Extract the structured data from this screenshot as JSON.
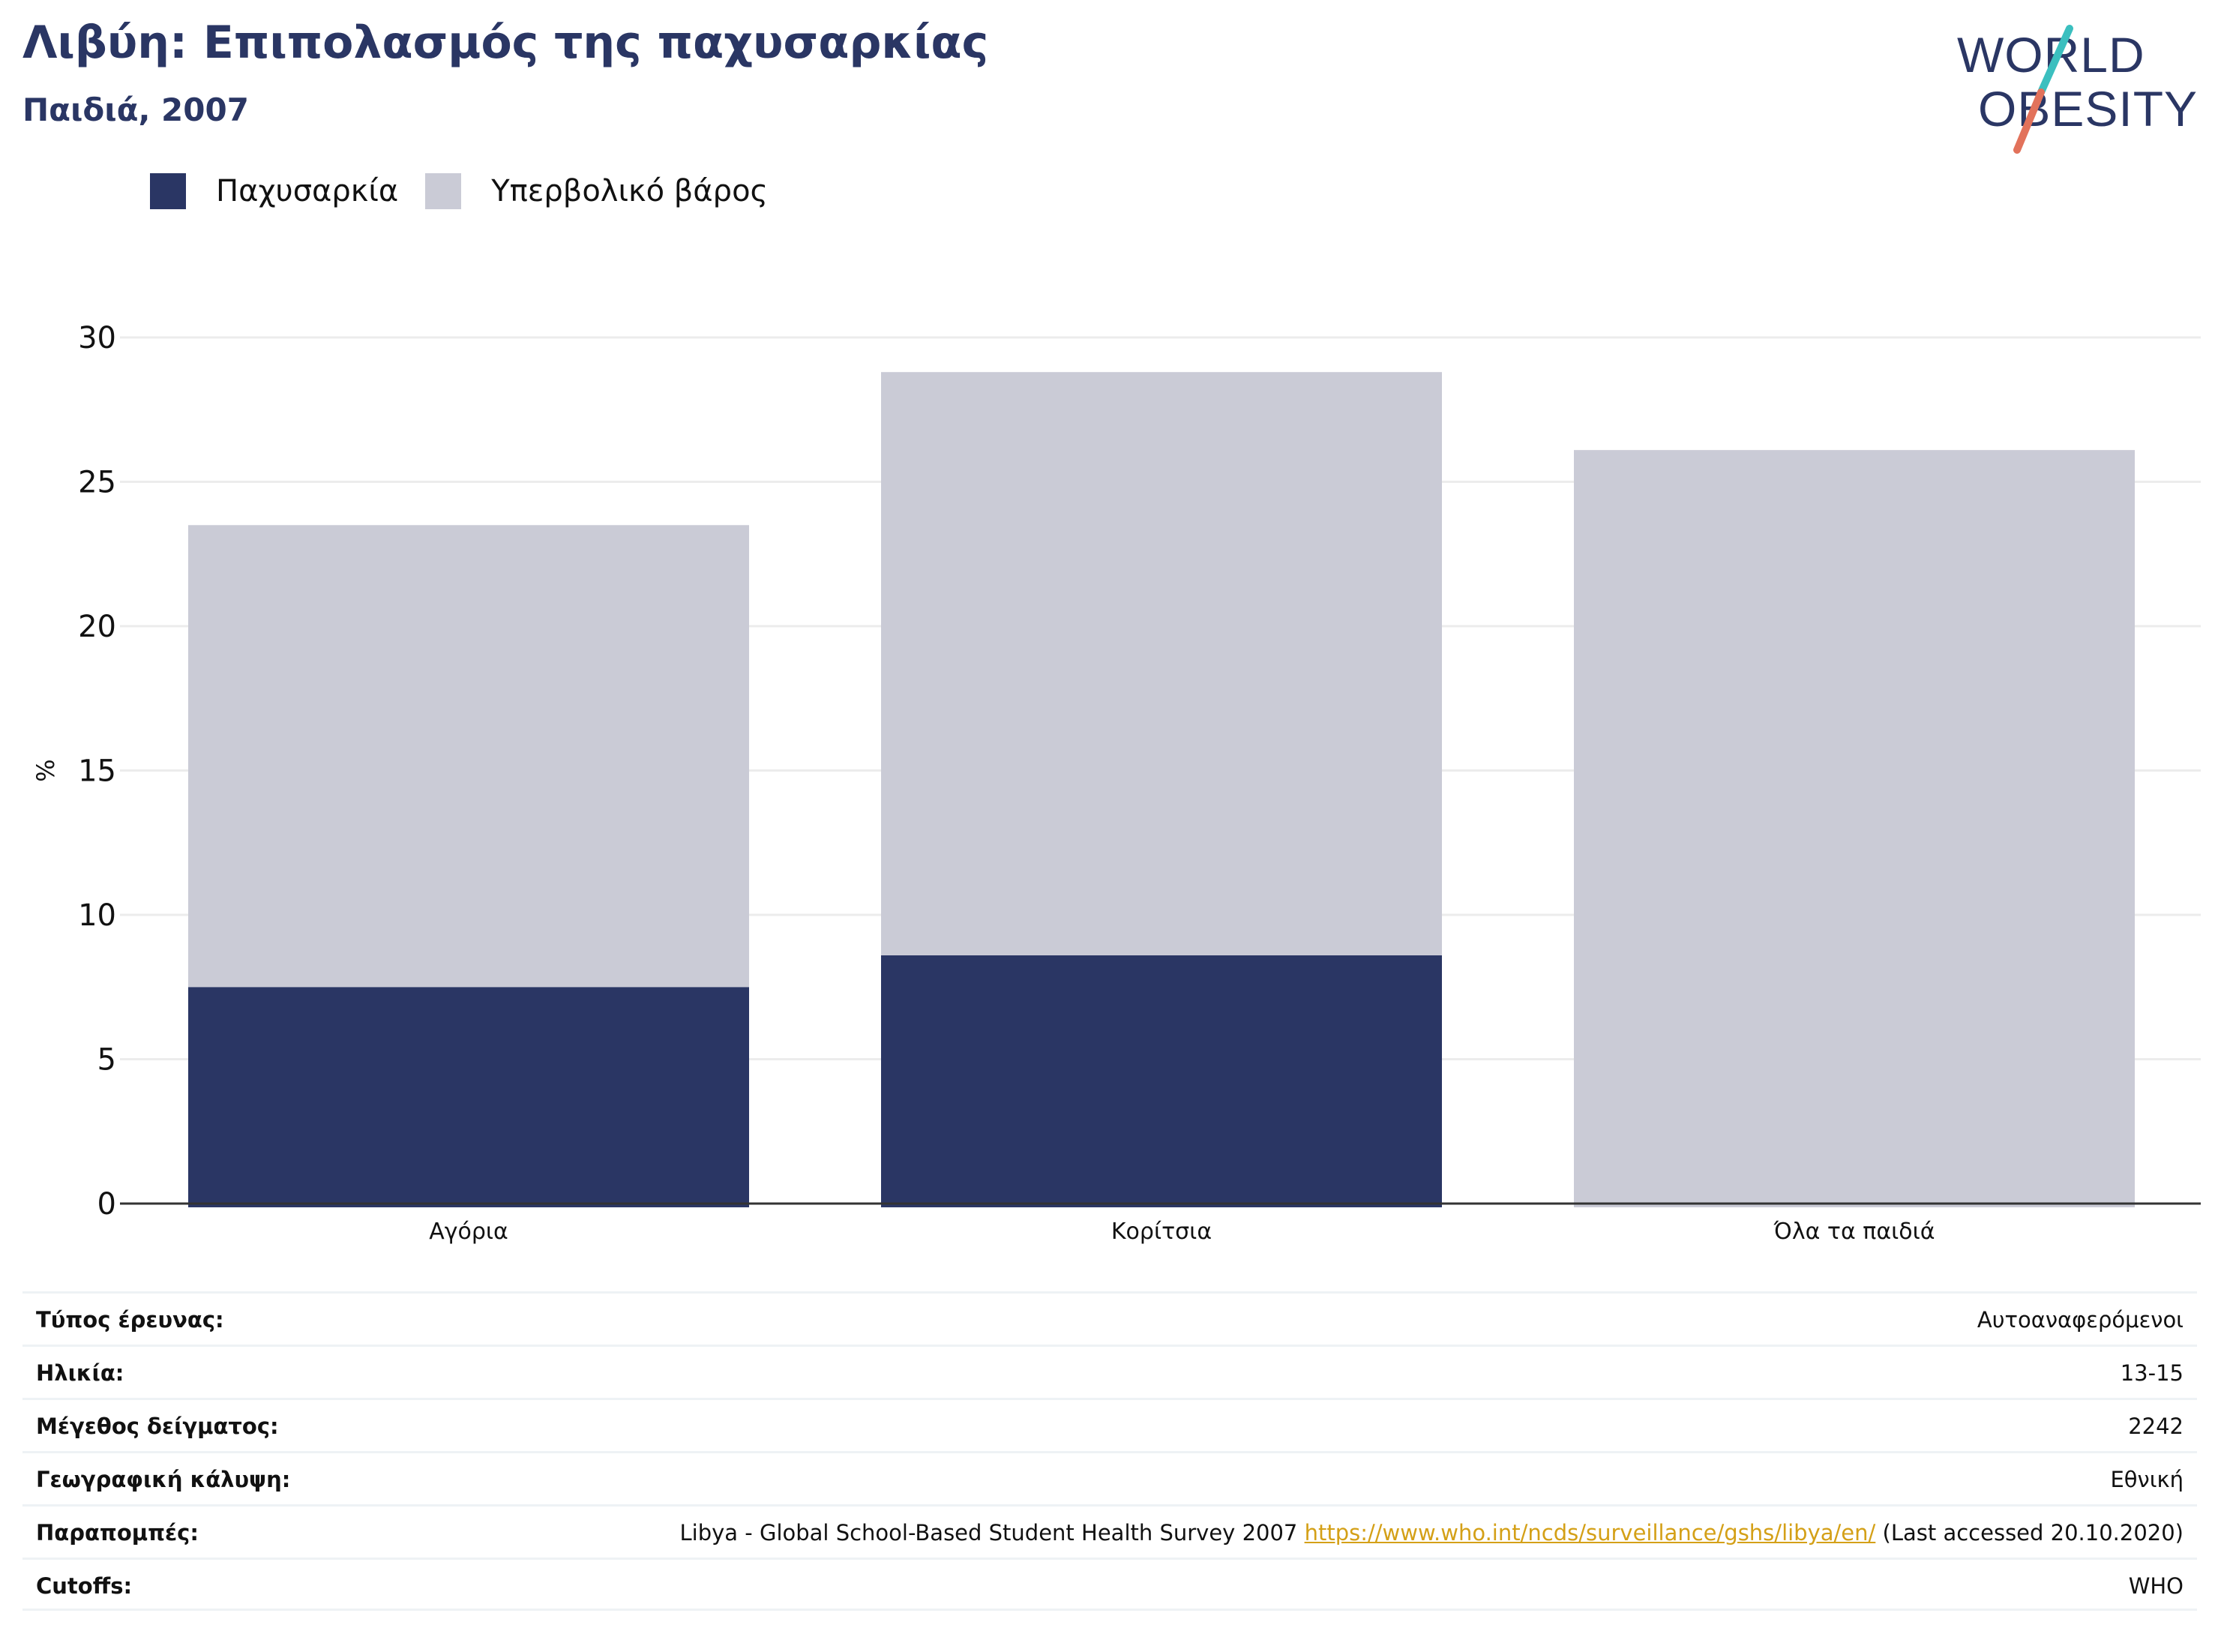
{
  "header": {
    "title": "Λιβύη: Επιπολασμός της παχυσαρκίας",
    "subtitle": "Παιδιά, 2007"
  },
  "logo": {
    "line1": "WORLD",
    "line2": "OBESITY"
  },
  "colors": {
    "obesity": "#2a3664",
    "overweight": "#cacbd6",
    "accent_teal": "#3bbfbf",
    "accent_coral": "#e2725b",
    "link": "#d4a017"
  },
  "chart_data": {
    "type": "bar",
    "stacked": true,
    "categories": [
      "Αγόρια",
      "Κορίτσια",
      "Όλα τα παιδιά"
    ],
    "series": [
      {
        "name": "Παχυσαρκία",
        "values": [
          7.5,
          8.6,
          null
        ]
      },
      {
        "name": "Υπερβολικό βάρος",
        "values": [
          16.0,
          20.2,
          26.1
        ]
      }
    ],
    "ylabel": "%",
    "ylim": [
      0,
      30
    ],
    "yticks": [
      0,
      5,
      10,
      15,
      20,
      25,
      30
    ],
    "grid": true,
    "legend": "top-left"
  },
  "meta": [
    {
      "key": "Τύπος έρευνας:",
      "value": "Αυτοαναφερόμενοι"
    },
    {
      "key": "Ηλικία:",
      "value": "13-15"
    },
    {
      "key": "Μέγεθος δείγματος:",
      "value": "2242"
    },
    {
      "key": "Γεωγραφική κάλυψη:",
      "value": "Εθνική"
    },
    {
      "key": "Παραπομπές:",
      "value_pre": "Libya - Global School-Based Student Health Survey 2007 ",
      "link": "https://www.who.int/ncds/surveillance/gshs/libya/en/",
      "value_post": " (Last accessed 20.10.2020)"
    },
    {
      "key": "Cutoffs:",
      "value": "WHO"
    }
  ]
}
